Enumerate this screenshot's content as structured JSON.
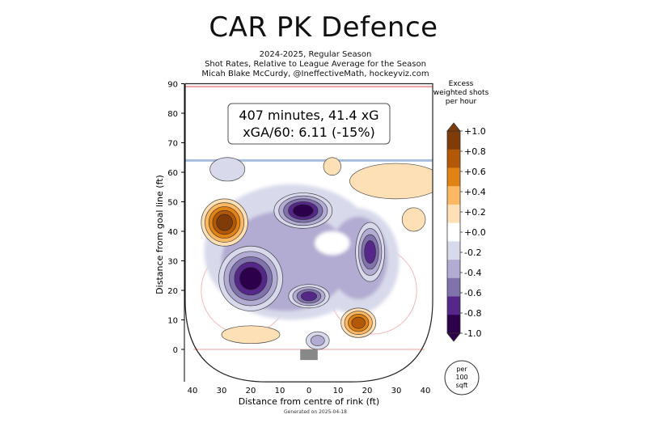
{
  "title": "CAR PK Defence",
  "subtitles": [
    "2024-2025, Regular Season",
    "Shot Rates, Relative to League Average for the Season",
    "Micah Blake McCurdy, @IneffectiveMath, hockeyviz.com"
  ],
  "footer": "Generated on 2025-04-18",
  "chart_data": {
    "type": "heatmap",
    "xlabel": "Distance from centre of rink (ft)",
    "ylabel": "Distance from goal line (ft)",
    "x_ticks": [
      "40",
      "30",
      "20",
      "10",
      "0",
      "10",
      "20",
      "30",
      "40"
    ],
    "x_tick_values": [
      -40,
      -30,
      -20,
      -10,
      0,
      10,
      20,
      30,
      40
    ],
    "y_ticks": [
      0,
      10,
      20,
      30,
      40,
      50,
      60,
      70,
      80,
      90
    ],
    "xlim": [
      -42.5,
      42.5
    ],
    "ylim": [
      -11,
      90
    ],
    "annotation": {
      "line1": "407 minutes, 41.4 xG",
      "line2": "xGA/60: 6.11 (-15%)"
    },
    "colorbar": {
      "title": [
        "Excess",
        "weighted shots",
        "per hour"
      ],
      "labels": [
        "+1.0",
        "+0.8",
        "+0.6",
        "+0.4",
        "+0.2",
        "+0.0",
        "-0.2",
        "-0.4",
        "-0.6",
        "-0.8",
        "-1.0"
      ],
      "values": [
        1.0,
        0.8,
        0.6,
        0.4,
        0.2,
        0.0,
        -0.2,
        -0.4,
        -0.6,
        -0.8,
        -1.0
      ],
      "colors": [
        "#7f3b08",
        "#b35806",
        "#e08214",
        "#fdb863",
        "#fee0b6",
        "#ffffff",
        "#d8daeb",
        "#b2abd2",
        "#8073ac",
        "#542788",
        "#2d004b"
      ]
    },
    "scale_badge": [
      "per",
      "100",
      "sqft"
    ],
    "hotspots": [
      {
        "x": -29,
        "y": 43,
        "rx": 8,
        "ry": 8,
        "value": 1.0
      },
      {
        "x": -20,
        "y": 24,
        "rx": 11,
        "ry": 11,
        "value": -1.0
      },
      {
        "x": -2,
        "y": 47,
        "rx": 10,
        "ry": 6,
        "value": -1.0
      },
      {
        "x": 0,
        "y": 18,
        "rx": 7,
        "ry": 4,
        "value": -0.9
      },
      {
        "x": 17,
        "y": 9,
        "rx": 6,
        "ry": 5,
        "value": 0.8
      },
      {
        "x": 21,
        "y": 33,
        "rx": 5,
        "ry": 10,
        "value": -0.8
      },
      {
        "x": 30,
        "y": 57,
        "rx": 16,
        "ry": 6,
        "value": 0.2
      },
      {
        "x": 8,
        "y": 62,
        "rx": 3,
        "ry": 3,
        "value": 0.2
      },
      {
        "x": -28,
        "y": 61,
        "rx": 6,
        "ry": 4,
        "value": -0.2
      },
      {
        "x": -20,
        "y": 5,
        "rx": 10,
        "ry": 3,
        "value": 0.2
      },
      {
        "x": 36,
        "y": 44,
        "rx": 4,
        "ry": 4,
        "value": 0.3
      },
      {
        "x": 3,
        "y": 3,
        "rx": 4,
        "ry": 3,
        "value": -0.5
      }
    ]
  }
}
